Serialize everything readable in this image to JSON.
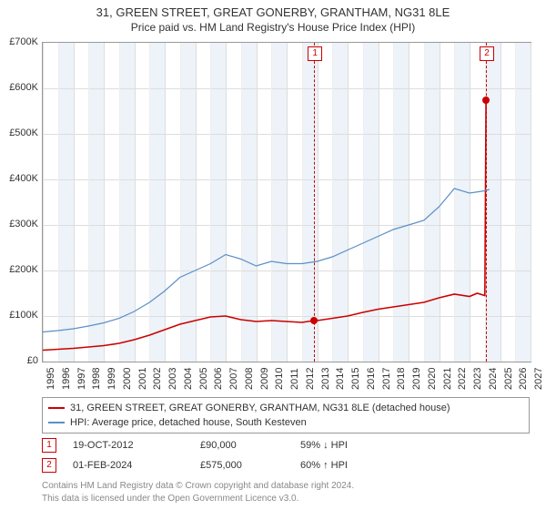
{
  "title": "31, GREEN STREET, GREAT GONERBY, GRANTHAM, NG31 8LE",
  "subtitle": "Price paid vs. HM Land Registry's House Price Index (HPI)",
  "chart": {
    "type": "line",
    "xlim": [
      1995,
      2027
    ],
    "ylim": [
      0,
      700000
    ],
    "ytick_step": 100000,
    "yticks": [
      "£0",
      "£100K",
      "£200K",
      "£300K",
      "£400K",
      "£500K",
      "£600K",
      "£700K"
    ],
    "xticks": [
      1995,
      1996,
      1997,
      1998,
      1999,
      2000,
      2001,
      2002,
      2003,
      2004,
      2005,
      2006,
      2007,
      2008,
      2009,
      2010,
      2011,
      2012,
      2013,
      2014,
      2015,
      2016,
      2017,
      2018,
      2019,
      2020,
      2021,
      2022,
      2023,
      2024,
      2025,
      2026,
      2027
    ],
    "band_years": [
      [
        1996,
        1997
      ],
      [
        1998,
        1999
      ],
      [
        2000,
        2001
      ],
      [
        2002,
        2003
      ],
      [
        2004,
        2005
      ],
      [
        2006,
        2007
      ],
      [
        2008,
        2009
      ],
      [
        2010,
        2011
      ],
      [
        2012,
        2013
      ],
      [
        2014,
        2015
      ],
      [
        2016,
        2017
      ],
      [
        2018,
        2019
      ],
      [
        2020,
        2021
      ],
      [
        2022,
        2023
      ],
      [
        2024,
        2025
      ],
      [
        2026,
        2027
      ]
    ],
    "background_color": "#ffffff",
    "grid_color": "#dddddd",
    "series": [
      {
        "name": "property",
        "color": "#cc0000",
        "width": 1.6,
        "data": [
          [
            1995,
            25000
          ],
          [
            1996,
            27000
          ],
          [
            1997,
            29000
          ],
          [
            1998,
            32000
          ],
          [
            1999,
            35000
          ],
          [
            2000,
            40000
          ],
          [
            2001,
            48000
          ],
          [
            2002,
            58000
          ],
          [
            2003,
            70000
          ],
          [
            2004,
            82000
          ],
          [
            2005,
            90000
          ],
          [
            2006,
            98000
          ],
          [
            2007,
            100000
          ],
          [
            2008,
            92000
          ],
          [
            2009,
            88000
          ],
          [
            2010,
            90000
          ],
          [
            2011,
            88000
          ],
          [
            2012,
            86000
          ],
          [
            2012.8,
            90000
          ],
          [
            2013,
            90000
          ],
          [
            2014,
            95000
          ],
          [
            2015,
            100000
          ],
          [
            2016,
            108000
          ],
          [
            2017,
            115000
          ],
          [
            2018,
            120000
          ],
          [
            2019,
            125000
          ],
          [
            2020,
            130000
          ],
          [
            2021,
            140000
          ],
          [
            2022,
            148000
          ],
          [
            2023,
            143000
          ],
          [
            2023.5,
            150000
          ],
          [
            2024,
            145000
          ],
          [
            2024.08,
            575000
          ]
        ]
      },
      {
        "name": "hpi",
        "color": "#5b8fc7",
        "width": 1.2,
        "data": [
          [
            1995,
            65000
          ],
          [
            1996,
            68000
          ],
          [
            1997,
            72000
          ],
          [
            1998,
            78000
          ],
          [
            1999,
            85000
          ],
          [
            2000,
            95000
          ],
          [
            2001,
            110000
          ],
          [
            2002,
            130000
          ],
          [
            2003,
            155000
          ],
          [
            2004,
            185000
          ],
          [
            2005,
            200000
          ],
          [
            2006,
            215000
          ],
          [
            2007,
            235000
          ],
          [
            2008,
            225000
          ],
          [
            2009,
            210000
          ],
          [
            2010,
            220000
          ],
          [
            2011,
            215000
          ],
          [
            2012,
            215000
          ],
          [
            2013,
            220000
          ],
          [
            2014,
            230000
          ],
          [
            2015,
            245000
          ],
          [
            2016,
            260000
          ],
          [
            2017,
            275000
          ],
          [
            2018,
            290000
          ],
          [
            2019,
            300000
          ],
          [
            2020,
            310000
          ],
          [
            2021,
            340000
          ],
          [
            2022,
            380000
          ],
          [
            2023,
            370000
          ],
          [
            2024,
            375000
          ],
          [
            2024.3,
            378000
          ]
        ]
      }
    ],
    "markers": [
      {
        "num": "1",
        "x": 2012.8,
        "y": 90000
      },
      {
        "num": "2",
        "x": 2024.08,
        "y": 575000
      }
    ]
  },
  "legend": [
    {
      "color": "#cc0000",
      "label": "31, GREEN STREET, GREAT GONERBY, GRANTHAM, NG31 8LE (detached house)"
    },
    {
      "color": "#5b8fc7",
      "label": "HPI: Average price, detached house, South Kesteven"
    }
  ],
  "transactions": [
    {
      "num": "1",
      "date": "19-OCT-2012",
      "price": "£90,000",
      "pct": "59% ↓ HPI"
    },
    {
      "num": "2",
      "date": "01-FEB-2024",
      "price": "£575,000",
      "pct": "60% ↑ HPI"
    }
  ],
  "footer1": "Contains HM Land Registry data © Crown copyright and database right 2024.",
  "footer2": "This data is licensed under the Open Government Licence v3.0."
}
